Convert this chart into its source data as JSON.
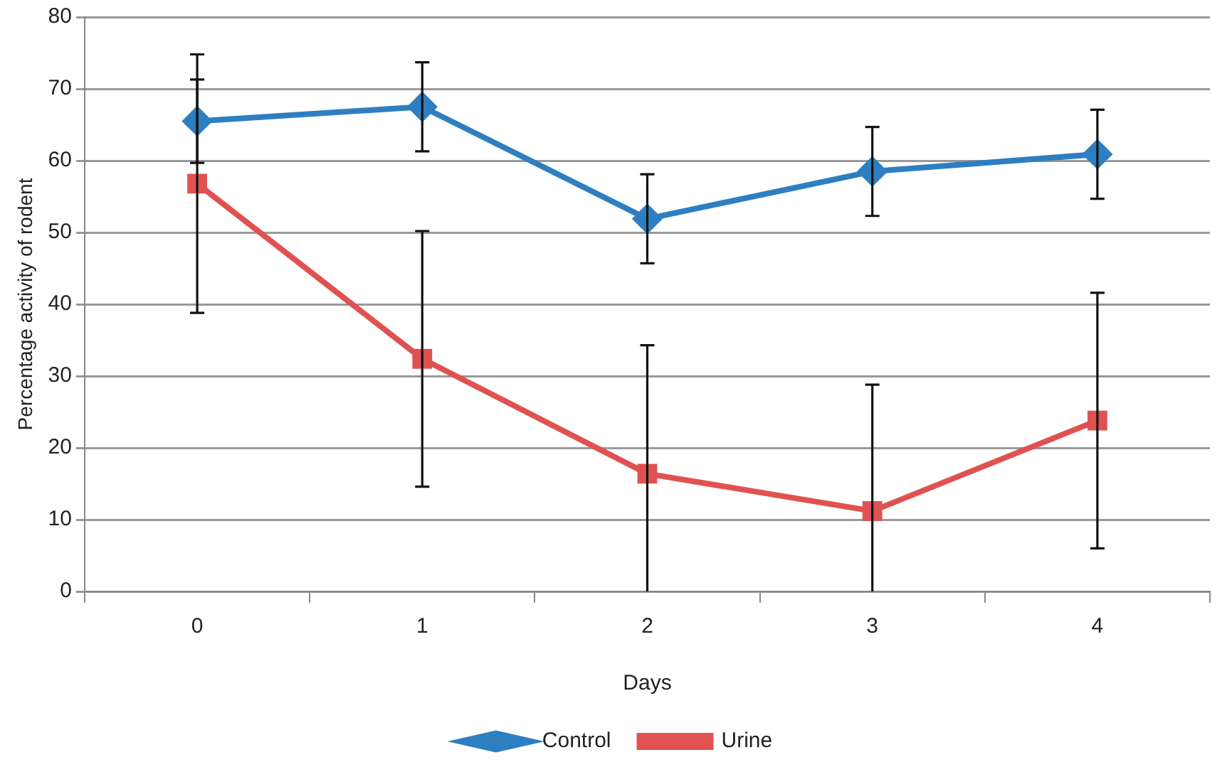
{
  "chart_data": {
    "type": "line",
    "xlabel": "Days",
    "ylabel": "Percentage activity of rodent",
    "categories": [
      "0",
      "1",
      "2",
      "3",
      "4"
    ],
    "series": [
      {
        "name": "Control",
        "color": "#2e7fc1",
        "marker": "diamond",
        "values": [
          65.5,
          67.5,
          51.9,
          58.5,
          60.9
        ],
        "errors": [
          5.8,
          6.2,
          6.2,
          6.2,
          6.2
        ]
      },
      {
        "name": "Urine",
        "color": "#e05252",
        "marker": "square",
        "values": [
          56.8,
          32.4,
          16.4,
          11.2,
          23.8
        ],
        "errors": [
          18,
          17.8,
          [
            0,
            34.3
          ],
          [
            0,
            28.8
          ],
          17.8
        ]
      }
    ],
    "ylim": [
      0,
      80
    ],
    "yticks": [
      0,
      10,
      20,
      30,
      40,
      50,
      60,
      70,
      80
    ],
    "grid": "y",
    "legend": "bottom",
    "line_style": "solid"
  }
}
